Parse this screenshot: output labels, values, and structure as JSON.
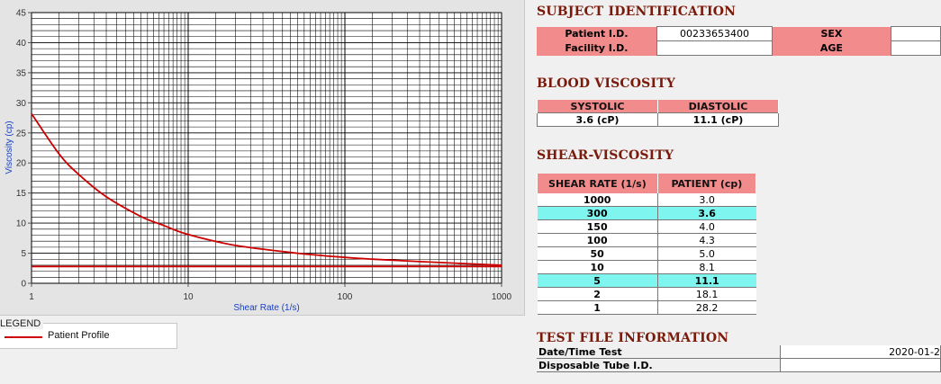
{
  "chart_data": {
    "type": "line",
    "xlabel": "Shear Rate (1/s)",
    "ylabel": "Viscosity (cp)",
    "x_scale": "log",
    "xlim": [
      1,
      1000
    ],
    "ylim": [
      0,
      45
    ],
    "x_ticks": [
      "1",
      "10",
      "100",
      "1000"
    ],
    "y_ticks": [
      "0",
      "5",
      "10",
      "15",
      "20",
      "25",
      "30",
      "35",
      "40",
      "45"
    ],
    "grid": true,
    "series": [
      {
        "name": "Patient Profile",
        "color": "#cc0000",
        "x": [
          1,
          1.5,
          2,
          3,
          5,
          7,
          10,
          20,
          50,
          100,
          150,
          300,
          1000
        ],
        "y": [
          28.2,
          21.5,
          18.1,
          14.4,
          11.1,
          9.6,
          8.1,
          6.3,
          5.0,
          4.3,
          4.0,
          3.6,
          3.0
        ]
      },
      {
        "name": "",
        "color": "#cc0000",
        "x": [
          1,
          1000
        ],
        "y": [
          2.8,
          2.8
        ]
      }
    ]
  },
  "legend": {
    "title": "LEGEND",
    "items": [
      {
        "label": "Patient Profile",
        "color": "#cc0000"
      }
    ]
  },
  "subject": {
    "title": "SUBJECT IDENTIFICATION",
    "patient_id_label": "Patient I.D.",
    "patient_id_value": "00233653400",
    "facility_id_label": "Facility I.D.",
    "facility_id_value": "",
    "sex_label": "SEX",
    "sex_value": "",
    "age_label": "AGE",
    "age_value": ""
  },
  "blood": {
    "title": "BLOOD VISCOSITY",
    "systolic_label": "SYSTOLIC",
    "diastolic_label": "DIASTOLIC",
    "systolic_value": "3.6 (cP)",
    "diastolic_value": "11.1 (cP)"
  },
  "shear": {
    "title": "SHEAR-VISCOSITY",
    "col_rate": "SHEAR RATE (1/s)",
    "col_patient": "PATIENT (cp)",
    "rows": [
      {
        "rate": "1000",
        "patient": "3.0",
        "highlight": false
      },
      {
        "rate": "300",
        "patient": "3.6",
        "highlight": true
      },
      {
        "rate": "150",
        "patient": "4.0",
        "highlight": false
      },
      {
        "rate": "100",
        "patient": "4.3",
        "highlight": false
      },
      {
        "rate": "50",
        "patient": "5.0",
        "highlight": false
      },
      {
        "rate": "10",
        "patient": "8.1",
        "highlight": false
      },
      {
        "rate": "5",
        "patient": "11.1",
        "highlight": true
      },
      {
        "rate": "2",
        "patient": "18.1",
        "highlight": false
      },
      {
        "rate": "1",
        "patient": "28.2",
        "highlight": false
      }
    ]
  },
  "test_file": {
    "title": "TEST FILE INFORMATION",
    "date_label": "Date/Time Test",
    "date_value": "2020-01-2",
    "tube_label": "Disposable Tube I.D.",
    "tube_value": ""
  }
}
